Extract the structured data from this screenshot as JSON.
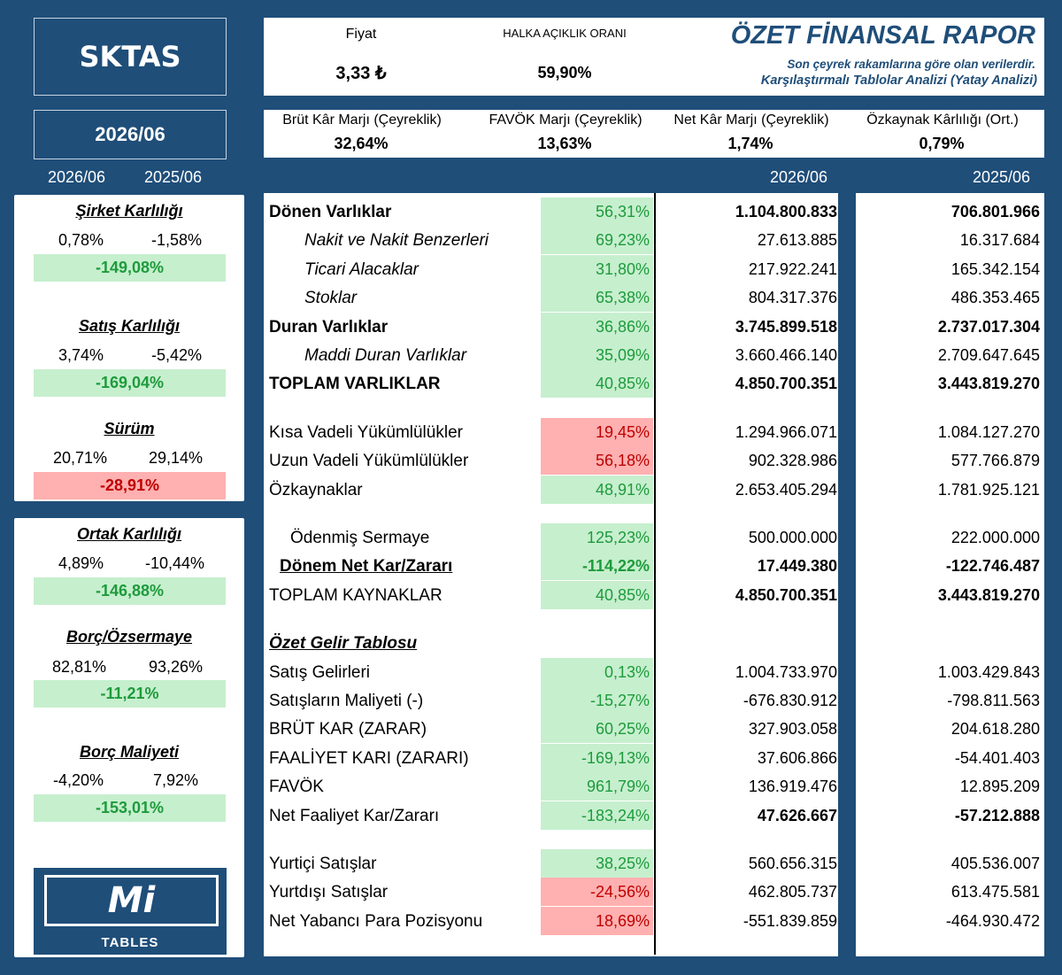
{
  "ticker": "SKTAS",
  "period": "2026/06",
  "left_headers": [
    "2026/06",
    "2025/06"
  ],
  "top": {
    "price_label": "Fiyat",
    "price_value": "3,33 ₺",
    "float_label": "HALKA AÇIKLIK ORANI",
    "float_value": "59,90%",
    "title": "ÖZET FİNANSAL RAPOR",
    "subtitle1": "Son çeyrek rakamlarına göre olan verilerdir.",
    "subtitle2": "Karşılaştırmalı Tablolar Analizi (Yatay Analizi)"
  },
  "metrics": [
    {
      "label": "Brüt Kâr Marjı (Çeyreklik)",
      "value": "32,64%"
    },
    {
      "label": "FAVÖK Marjı (Çeyreklik)",
      "value": "13,63%"
    },
    {
      "label": "Net Kâr Marjı (Çeyreklik)",
      "value": "1,74%"
    },
    {
      "label": "Özkaynak Kârlılığı (Ort.)",
      "value": "0,79%"
    }
  ],
  "col_headers": [
    "2026/06",
    "2025/06"
  ],
  "ratios": [
    {
      "title": "Şirket Karlılığı",
      "v1": "0,78%",
      "v2": "-1,58%",
      "change": "-149,08%",
      "tone": "pos"
    },
    {
      "title": "Satış Karlılığı",
      "v1": "3,74%",
      "v2": "-5,42%",
      "change": "-169,04%",
      "tone": "pos"
    },
    {
      "title": "Sürüm",
      "v1": "20,71%",
      "v2": "29,14%",
      "change": "-28,91%",
      "tone": "neg"
    },
    {
      "title": "Ortak Karlılığı",
      "v1": "4,89%",
      "v2": "-10,44%",
      "change": "-146,88%",
      "tone": "pos"
    },
    {
      "title": "Borç/Özsermaye",
      "v1": "82,81%",
      "v2": "93,26%",
      "change": "-11,21%",
      "tone": "pos"
    },
    {
      "title": "Borç Maliyeti",
      "v1": "-4,20%",
      "v2": "7,92%",
      "change": "-153,01%",
      "tone": "pos"
    }
  ],
  "logo": {
    "mark": "Mi",
    "caption": "TABLES"
  },
  "rows": [
    {
      "label": "Dönen Varlıklar",
      "change": "56,31%",
      "tone": "g",
      "v1": "1.104.800.833",
      "v2": "706.801.966",
      "style": "b",
      "vbold": true
    },
    {
      "label": "Nakit ve Nakit Benzerleri",
      "change": "69,23%",
      "tone": "g",
      "v1": "27.613.885",
      "v2": "16.317.684",
      "style": "it",
      "indent": 40
    },
    {
      "label": "Ticari Alacaklar",
      "change": "31,80%",
      "tone": "g",
      "v1": "217.922.241",
      "v2": "165.342.154",
      "style": "it",
      "indent": 40
    },
    {
      "label": "Stoklar",
      "change": "65,38%",
      "tone": "g",
      "v1": "804.317.376",
      "v2": "486.353.465",
      "style": "it",
      "indent": 40
    },
    {
      "label": "Duran Varlıklar",
      "change": "36,86%",
      "tone": "g",
      "v1": "3.745.899.518",
      "v2": "2.737.017.304",
      "style": "b",
      "vbold": true
    },
    {
      "label": "Maddi Duran Varlıklar",
      "change": "35,09%",
      "tone": "g",
      "v1": "3.660.466.140",
      "v2": "2.709.647.645",
      "style": "it",
      "indent": 40
    },
    {
      "label": "TOPLAM VARLIKLAR",
      "change": "40,85%",
      "tone": "g",
      "v1": "4.850.700.351",
      "v2": "3.443.819.270",
      "style": "b",
      "vbold": true
    },
    {
      "label": "Kısa Vadeli Yükümlülükler",
      "change": "19,45%",
      "tone": "r",
      "v1": "1.294.966.071",
      "v2": "1.084.127.270",
      "gap": 22
    },
    {
      "label": "Uzun Vadeli Yükümlülükler",
      "change": "56,18%",
      "tone": "r",
      "v1": "902.328.986",
      "v2": "577.766.879"
    },
    {
      "label": "Özkaynaklar",
      "change": "48,91%",
      "tone": "g",
      "v1": "2.653.405.294",
      "v2": "1.781.925.121"
    },
    {
      "label": "Ödenmiş Sermaye",
      "change": "125,23%",
      "tone": "g",
      "v1": "500.000.000",
      "v2": "222.000.000",
      "indent": 24,
      "gap": 22
    },
    {
      "label": "Dönem Net Kar/Zararı",
      "change": "-114,22%",
      "tone": "g",
      "v1": "17.449.380",
      "v2": "-122.746.487",
      "style": "b ul",
      "indent": 12,
      "vbold": true,
      "cbold": true
    },
    {
      "label": "TOPLAM KAYNAKLAR",
      "change": "40,85%",
      "tone": "g",
      "v1": "4.850.700.351",
      "v2": "3.443.819.270",
      "vbold": true
    },
    {
      "label": "Özet Gelir Tablosu",
      "change": "",
      "tone": "",
      "v1": "",
      "v2": "",
      "style": "b it ul",
      "gap": 22
    },
    {
      "label": "Satış Gelirleri",
      "change": "0,13%",
      "tone": "g",
      "v1": "1.004.733.970",
      "v2": "1.003.429.843"
    },
    {
      "label": "Satışların Maliyeti (-)",
      "change": "-15,27%",
      "tone": "g",
      "v1": "-676.830.912",
      "v2": "-798.811.563"
    },
    {
      "label": "BRÜT KAR (ZARAR)",
      "change": "60,25%",
      "tone": "g",
      "v1": "327.903.058",
      "v2": "204.618.280"
    },
    {
      "label": "FAALİYET KARI (ZARARI)",
      "change": "-169,13%",
      "tone": "g",
      "v1": "37.606.866",
      "v2": "-54.401.403"
    },
    {
      "label": "FAVÖK",
      "change": "961,79%",
      "tone": "g",
      "v1": "136.919.476",
      "v2": "12.895.209"
    },
    {
      "label": "Net Faaliyet Kar/Zararı",
      "change": "-183,24%",
      "tone": "g",
      "v1": "47.626.667",
      "v2": "-57.212.888",
      "vbold": true
    },
    {
      "label": "Yurtiçi Satışlar",
      "change": "38,25%",
      "tone": "g",
      "v1": "560.656.315",
      "v2": "405.536.007",
      "gap": 22
    },
    {
      "label": "Yurtdışı Satışlar",
      "change": "-24,56%",
      "tone": "r",
      "v1": "462.805.737",
      "v2": "613.475.581"
    },
    {
      "label": "Net Yabancı Para Pozisyonu",
      "change": "18,69%",
      "tone": "r",
      "v1": "-551.839.859",
      "v2": "-464.930.472"
    }
  ]
}
